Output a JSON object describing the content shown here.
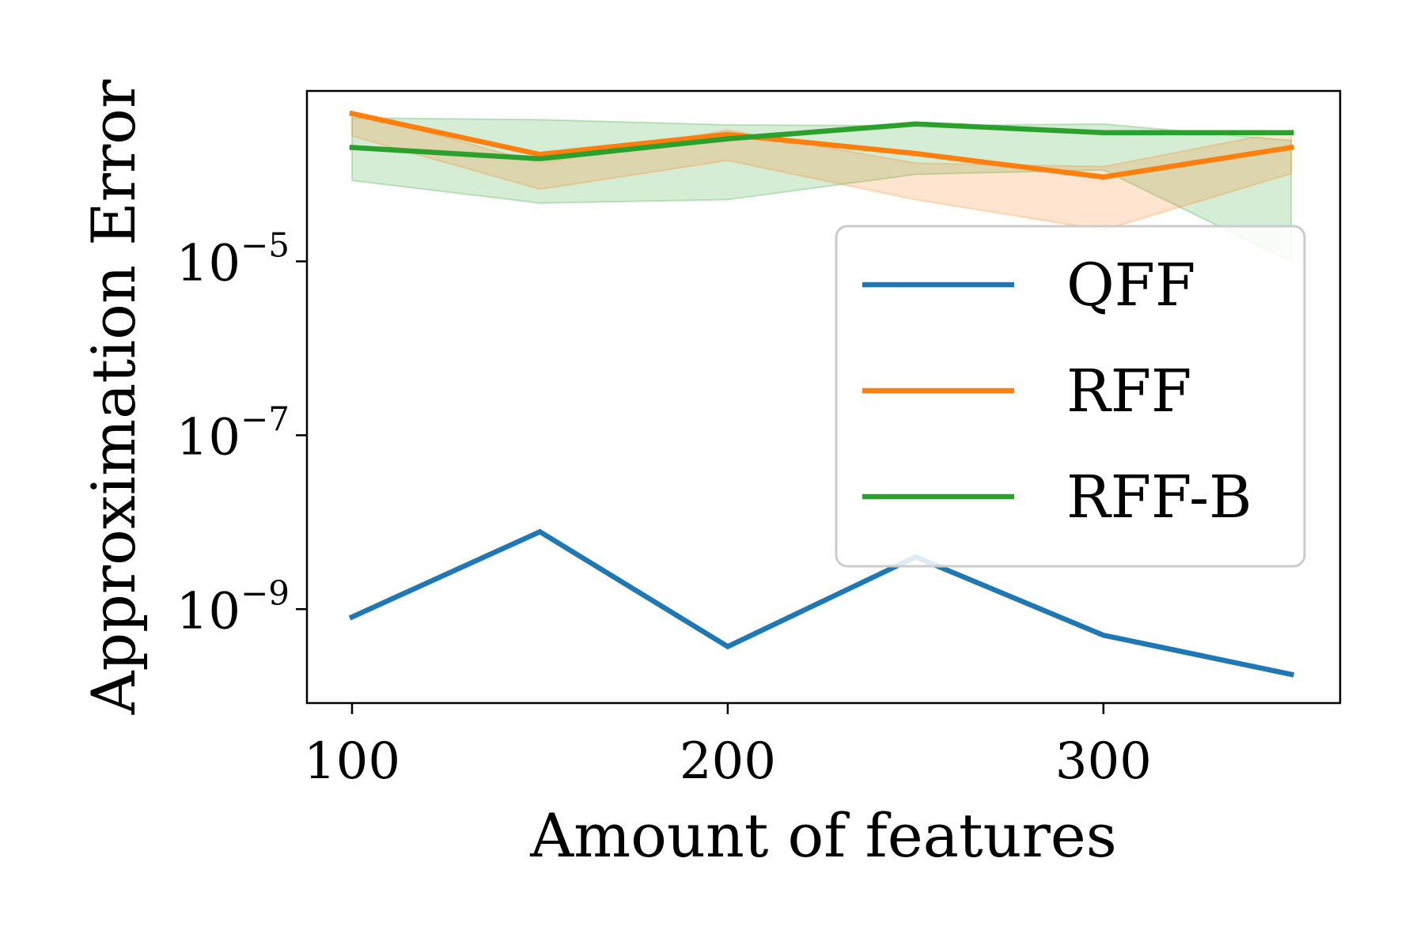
{
  "chart_data": {
    "type": "line",
    "title": "",
    "xlabel": "Amount of features",
    "ylabel": "Approximation Error",
    "yscale": "log",
    "xlim": [
      88,
      363
    ],
    "ylim_log10": [
      -10.08,
      -3.04
    ],
    "x": [
      100,
      150,
      200,
      250,
      300,
      350
    ],
    "x_ticks": [
      100,
      200,
      300
    ],
    "y_ticks": [
      {
        "base": "10",
        "exp": "−5",
        "log10": -5
      },
      {
        "base": "10",
        "exp": "−7",
        "log10": -7
      },
      {
        "base": "10",
        "exp": "−9",
        "log10": -9
      }
    ],
    "legend_position": "right",
    "grid": false,
    "series": [
      {
        "name": "QFF",
        "color": "#1f77b4",
        "log10_values": [
          -9.09,
          -8.11,
          -9.43,
          -8.4,
          -9.3,
          -9.75
        ]
      },
      {
        "name": "RFF",
        "color": "#ff7f0e",
        "log10_values": [
          -3.3,
          -3.77,
          -3.54,
          -3.76,
          -4.03,
          -3.69
        ],
        "band_log10_lower": [
          -3.56,
          -4.17,
          -3.84,
          -4.29,
          -4.64,
          -3.99
        ],
        "band_log10_upper": [
          -3.28,
          -3.87,
          -3.49,
          -3.87,
          -3.91,
          -3.49
        ]
      },
      {
        "name": "RFF-B",
        "color": "#2ca02c",
        "log10_values": [
          -3.69,
          -3.82,
          -3.59,
          -3.42,
          -3.52,
          -3.52
        ],
        "band_log10_lower": [
          -4.07,
          -4.33,
          -4.29,
          -4.0,
          -3.95,
          -5.0
        ],
        "band_log10_upper": [
          -3.35,
          -3.37,
          -3.43,
          -3.44,
          -3.42,
          -3.61
        ]
      }
    ]
  }
}
